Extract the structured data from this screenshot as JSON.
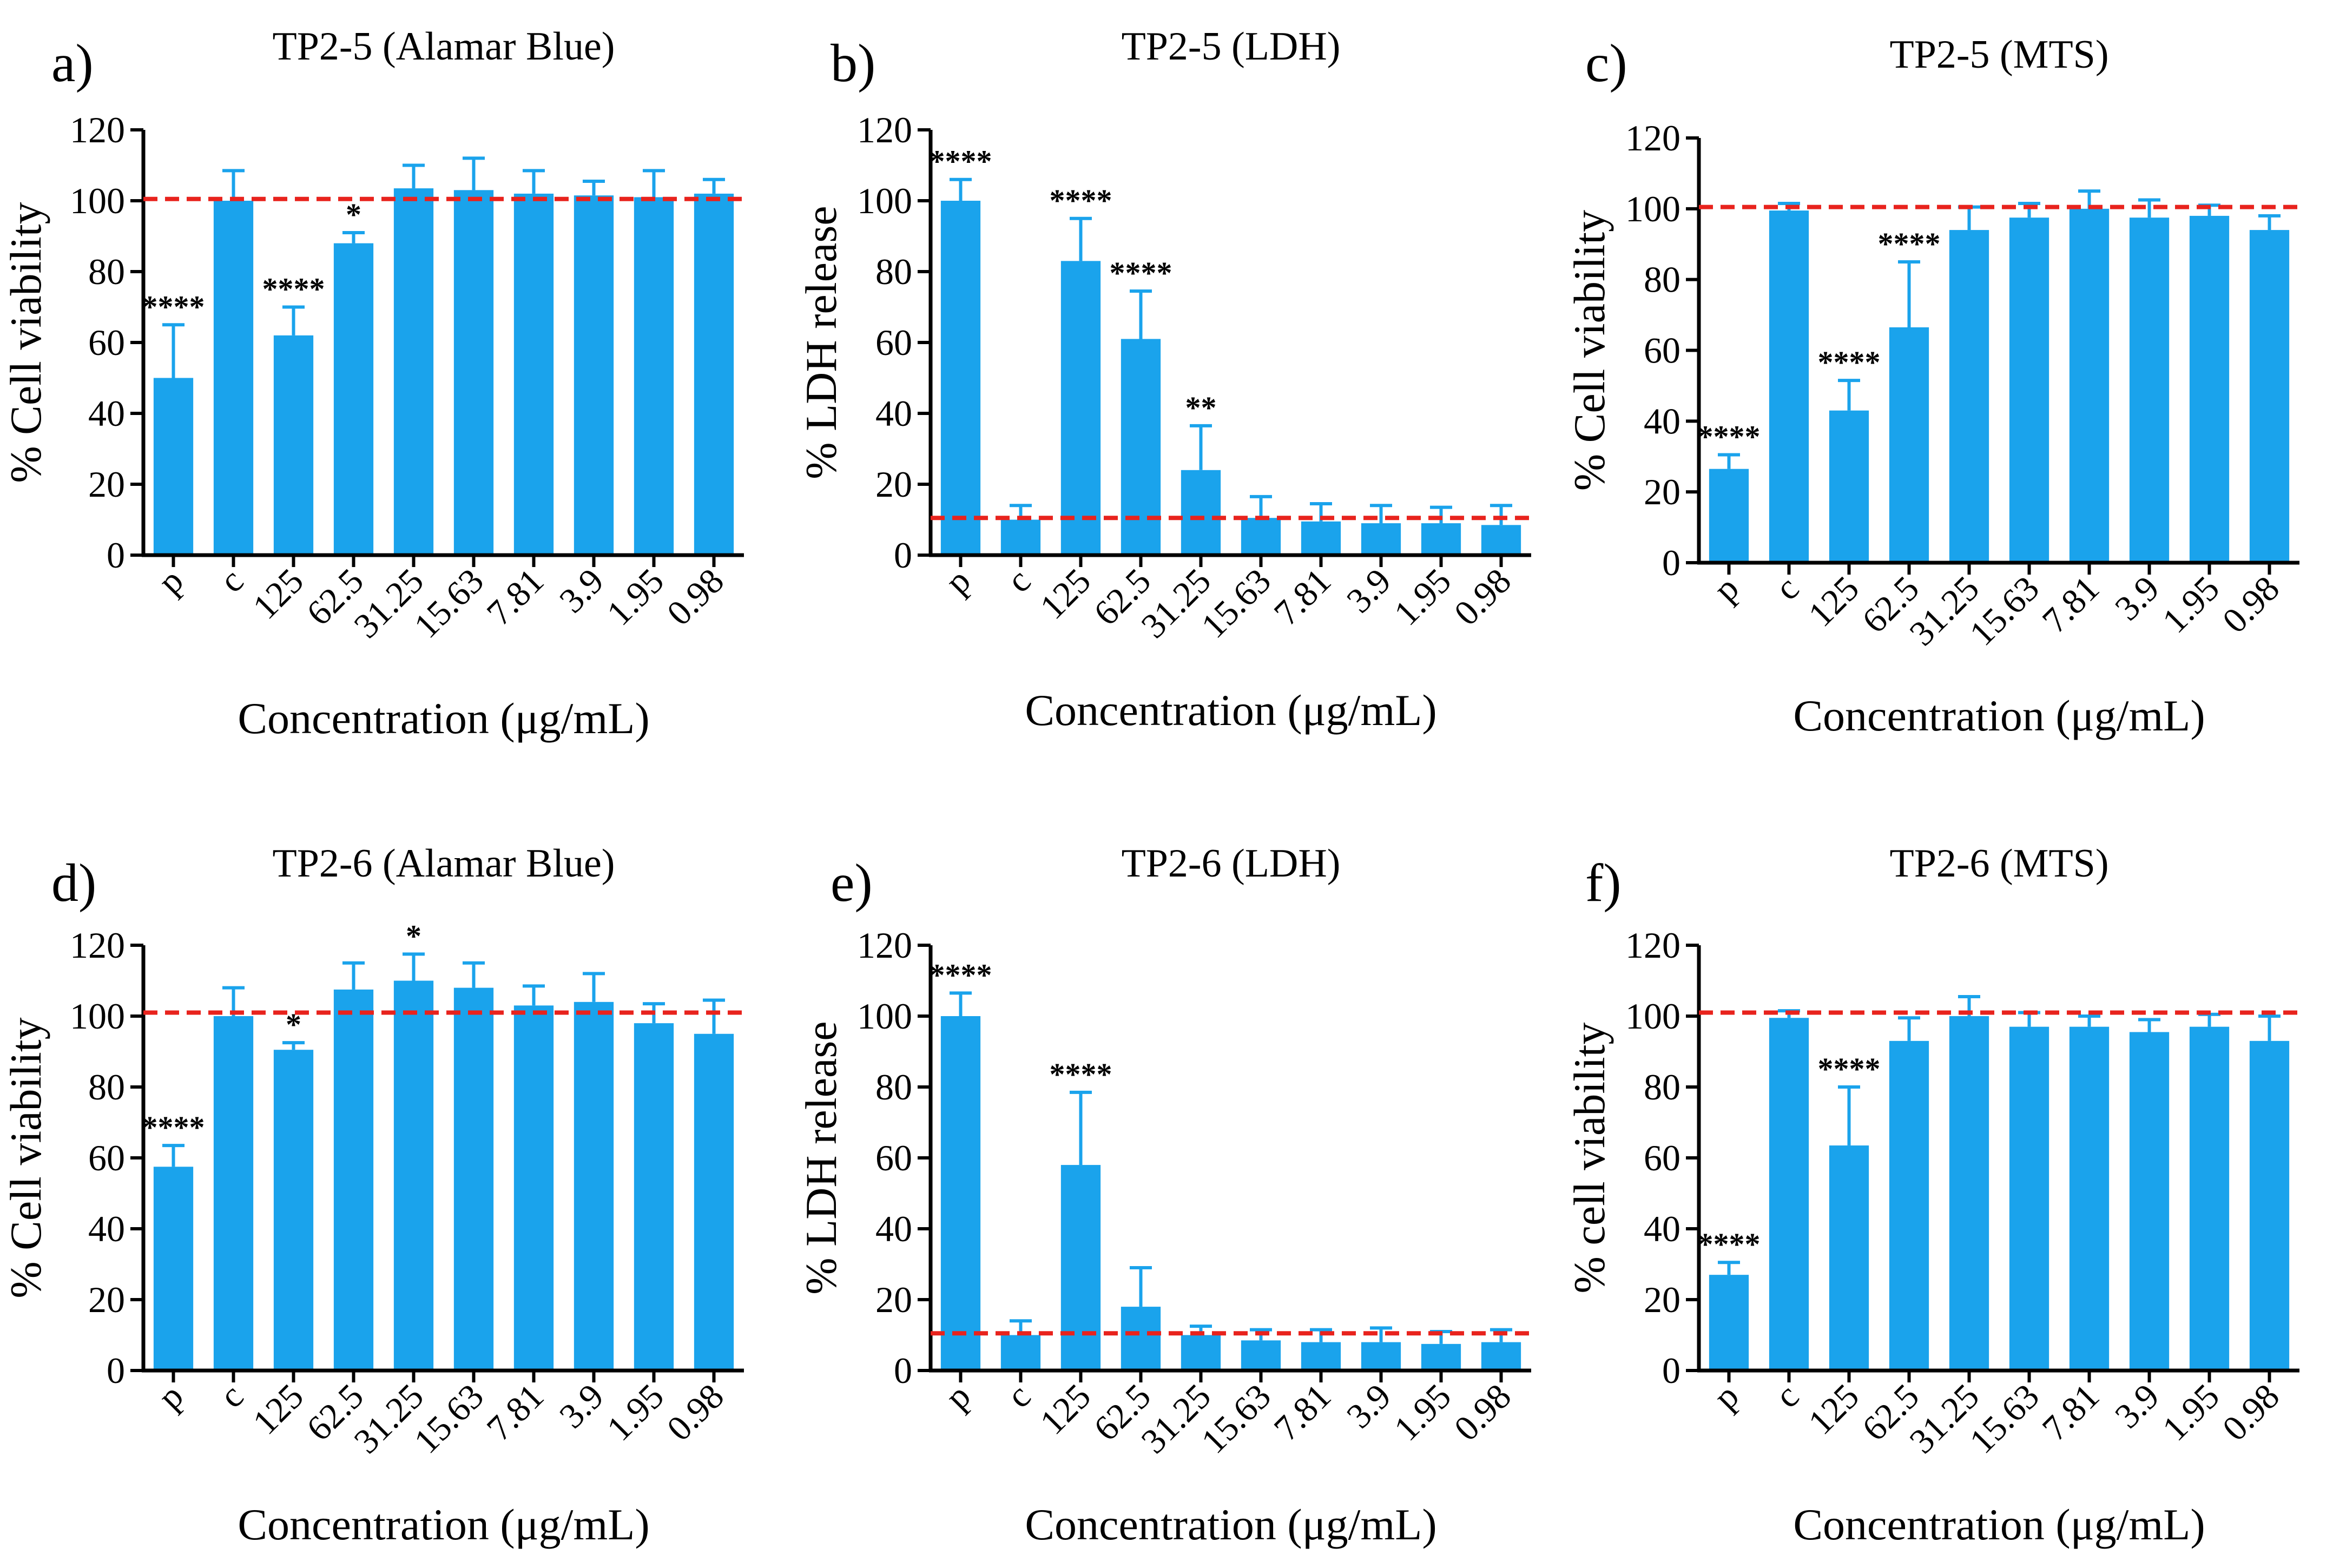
{
  "figure": {
    "bar_color": "#1AA3EC",
    "axis_color": "#000000",
    "reference_line_color": "#E8231D"
  },
  "chart_data": [
    {
      "panel": "a)",
      "type": "bar",
      "title": "TP2-5 (Alamar Blue)",
      "xlabel": "Concentration (μg/mL)",
      "ylabel": "% Cell viability",
      "ylim": [
        0,
        120
      ],
      "yticks": [
        "0",
        "20",
        "40",
        "60",
        "80",
        "100",
        "120"
      ],
      "categories": [
        "p",
        "c",
        "125",
        "62.5",
        "31.25",
        "15.63",
        "7.81",
        "3.9",
        "1.95",
        "0.98"
      ],
      "values": [
        50,
        100,
        62,
        88,
        103.5,
        103,
        102,
        101.5,
        101,
        102
      ],
      "errors": [
        15,
        8.5,
        8,
        3,
        6.5,
        9,
        6.5,
        4,
        7.5,
        4
      ],
      "significance": [
        "****",
        "",
        "****",
        "*",
        "",
        "",
        "",
        "",
        "",
        ""
      ],
      "reference_line": 100.5
    },
    {
      "panel": "b)",
      "type": "bar",
      "title": "TP2-5 (LDH)",
      "xlabel": "Concentration (μg/mL)",
      "ylabel": "% LDH release",
      "ylim": [
        0,
        120
      ],
      "yticks": [
        "0",
        "20",
        "40",
        "60",
        "80",
        "100",
        "120"
      ],
      "categories": [
        "p",
        "c",
        "125",
        "62.5",
        "31.25",
        "15.63",
        "7.81",
        "3.9",
        "1.95",
        "0.98"
      ],
      "values": [
        100,
        10,
        83,
        61,
        24,
        10.5,
        9.5,
        9,
        9,
        8.5
      ],
      "errors": [
        6,
        4,
        12,
        13.5,
        12.5,
        6,
        5,
        5,
        4.5,
        5.5
      ],
      "significance": [
        "****",
        "",
        "****",
        "****",
        "**",
        "",
        "",
        "",
        "",
        ""
      ],
      "reference_line": 10.5
    },
    {
      "panel": "c)",
      "type": "bar",
      "title": "TP2-5 (MTS)",
      "xlabel": "Concentration (μg/mL)",
      "ylabel": "% Cell viability",
      "ylim": [
        0,
        120
      ],
      "yticks": [
        "0",
        "20",
        "40",
        "60",
        "80",
        "100",
        "120"
      ],
      "categories": [
        "p",
        "c",
        "125",
        "62.5",
        "31.25",
        "15.63",
        "7.81",
        "3.9",
        "1.95",
        "0.98"
      ],
      "values": [
        26.5,
        99.5,
        43,
        66.5,
        94,
        97.5,
        100,
        97.5,
        98,
        94
      ],
      "errors": [
        4,
        2,
        8.5,
        18.5,
        6.5,
        4,
        5,
        5,
        3,
        4
      ],
      "significance": [
        "****",
        "",
        "****",
        "****",
        "",
        "",
        "",
        "",
        "",
        ""
      ],
      "reference_line": 100.5
    },
    {
      "panel": "d)",
      "type": "bar",
      "title": "TP2-6 (Alamar Blue)",
      "xlabel": "Concentration (μg/mL)",
      "ylabel": "% Cell viability",
      "ylim": [
        0,
        120
      ],
      "yticks": [
        "0",
        "20",
        "40",
        "60",
        "80",
        "100",
        "120"
      ],
      "categories": [
        "p",
        "c",
        "125",
        "62.5",
        "31.25",
        "15.63",
        "7.81",
        "3.9",
        "1.95",
        "0.98"
      ],
      "values": [
        57.5,
        100,
        90.5,
        107.5,
        110,
        108,
        103,
        104,
        98,
        95
      ],
      "errors": [
        6,
        8,
        2,
        7.5,
        7.5,
        7,
        5.5,
        8,
        5.5,
        9.5
      ],
      "significance": [
        "****",
        "",
        "*",
        "",
        "*",
        "",
        "",
        "",
        "",
        ""
      ],
      "reference_line": 101
    },
    {
      "panel": "e)",
      "type": "bar",
      "title": "TP2-6 (LDH)",
      "xlabel": "Concentration (μg/mL)",
      "ylabel": "% LDH release",
      "ylim": [
        0,
        120
      ],
      "yticks": [
        "0",
        "20",
        "40",
        "60",
        "80",
        "100",
        "120"
      ],
      "categories": [
        "p",
        "c",
        "125",
        "62.5",
        "31.25",
        "15.63",
        "7.81",
        "3.9",
        "1.95",
        "0.98"
      ],
      "values": [
        100,
        10,
        58,
        18,
        10,
        8.5,
        8,
        8,
        7.5,
        8
      ],
      "errors": [
        6.5,
        4,
        20.5,
        11,
        2.5,
        3,
        3.5,
        4,
        3.5,
        3.5
      ],
      "significance": [
        "****",
        "",
        "****",
        "",
        "",
        "",
        "",
        "",
        "",
        ""
      ],
      "reference_line": 10.5
    },
    {
      "panel": "f)",
      "type": "bar",
      "title": "TP2-6 (MTS)",
      "xlabel": "Concentration (μg/mL)",
      "ylabel": "% cell viability",
      "ylim": [
        0,
        120
      ],
      "yticks": [
        "0",
        "20",
        "40",
        "60",
        "80",
        "100",
        "120"
      ],
      "categories": [
        "p",
        "c",
        "125",
        "62.5",
        "31.25",
        "15.63",
        "7.81",
        "3.9",
        "1.95",
        "0.98"
      ],
      "values": [
        27,
        99.5,
        63.5,
        93,
        100,
        97,
        97,
        95.5,
        97,
        93
      ],
      "errors": [
        3.5,
        2,
        16.5,
        6.5,
        5.5,
        4,
        3,
        3.5,
        3.5,
        7
      ],
      "significance": [
        "****",
        "",
        "****",
        "",
        "",
        "",
        "",
        "",
        "",
        ""
      ],
      "reference_line": 101
    }
  ]
}
